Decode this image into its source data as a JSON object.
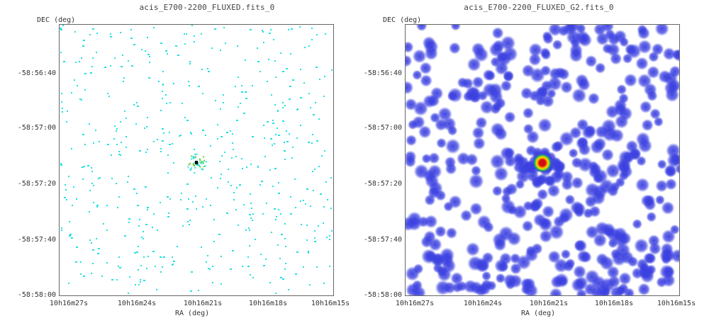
{
  "panels": [
    {
      "title": "acis_E700-2200_FLUXED.fits_0",
      "y_axis_label": "DEC (deg)",
      "x_axis_label": "RA (deg)",
      "y_ticks": [
        "-58:56:40",
        "-58:57:00",
        "-58:57:20",
        "-58:57:40",
        "-58:58:00"
      ],
      "x_ticks": [
        "10h16m27s",
        "10h16m24s",
        "10h16m21s",
        "10h16m18s",
        "10h16m15s"
      ],
      "style": "sparse",
      "colors": {
        "background": "#ffffff",
        "pixel": "#22e0e0",
        "hot": "#000000",
        "warm": "#66cc33"
      }
    },
    {
      "title": "acis_E700-2200_FLUXED_G2.fits_0",
      "y_axis_label": "DEC (deg)",
      "x_axis_label": "RA (deg)",
      "y_ticks": [
        "-58:56:40",
        "-58:57:00",
        "-58:57:20",
        "-58:57:40",
        "-58:58:00"
      ],
      "x_ticks": [
        "10h16m27s",
        "10h16m24s",
        "10h16m21s",
        "10h16m18s",
        "10h16m15s"
      ],
      "style": "smoothed",
      "colors": {
        "background": "#ffffff",
        "blob": "#3a3fe0",
        "core": "#d01010",
        "ring": "#f0e000"
      }
    }
  ]
}
